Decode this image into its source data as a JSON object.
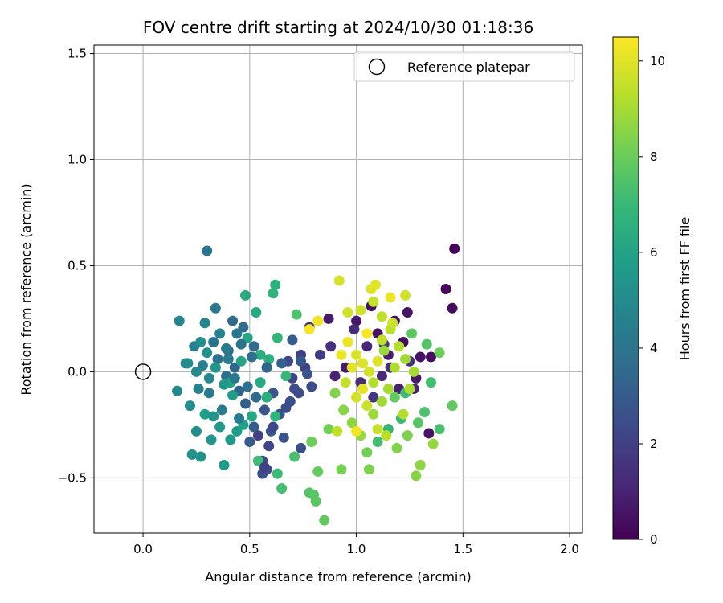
{
  "chart_data": {
    "type": "scatter",
    "title": "FOV centre drift starting at 2024/10/30 01:18:36",
    "xlabel": "Angular distance from reference (arcmin)",
    "ylabel": "Rotation from reference (arcmin)",
    "xlim": [
      -0.23,
      2.06
    ],
    "ylim": [
      -0.76,
      1.54
    ],
    "xticks": [
      0.0,
      0.5,
      1.0,
      1.5,
      2.0
    ],
    "xtick_labels": [
      "0.0",
      "0.5",
      "1.0",
      "1.5",
      "2.0"
    ],
    "yticks": [
      -0.5,
      0.0,
      0.5,
      1.0,
      1.5
    ],
    "ytick_labels": [
      "−0.5",
      "0.0",
      "0.5",
      "1.0",
      "1.5"
    ],
    "grid": true,
    "legend": {
      "placement": "top-right",
      "label": "Reference platepar"
    },
    "reference_point": {
      "x": 0.0,
      "y": 0.0
    },
    "colorbar": {
      "label": "Hours from first FF file",
      "range": [
        0,
        10.5
      ],
      "ticks": [
        0,
        2,
        4,
        6,
        8,
        10
      ],
      "tick_labels": [
        "0",
        "2",
        "4",
        "6",
        "8",
        "10"
      ],
      "colormap": "viridis"
    },
    "colormap_stops": [
      "#440154",
      "#482878",
      "#3e4989",
      "#31688e",
      "#26828e",
      "#1f9e89",
      "#35b779",
      "#6ece58",
      "#b5de2b",
      "#fde725"
    ],
    "points": [
      {
        "x": 1.46,
        "y": 0.58,
        "c": 0.1
      },
      {
        "x": 1.42,
        "y": 0.39,
        "c": 0.2
      },
      {
        "x": 1.45,
        "y": 0.3,
        "c": 0.3
      },
      {
        "x": 1.07,
        "y": 0.31,
        "c": 0.4
      },
      {
        "x": 1.18,
        "y": 0.24,
        "c": 0.5
      },
      {
        "x": 1.24,
        "y": 0.28,
        "c": 0.6
      },
      {
        "x": 1.3,
        "y": 0.07,
        "c": 0.5
      },
      {
        "x": 1.35,
        "y": 0.07,
        "c": 0.4
      },
      {
        "x": 1.34,
        "y": -0.29,
        "c": 0.6
      },
      {
        "x": 1.28,
        "y": -0.03,
        "c": 0.7
      },
      {
        "x": 1.22,
        "y": 0.14,
        "c": 0.3
      },
      {
        "x": 1.1,
        "y": 0.18,
        "c": 0.5
      },
      {
        "x": 1.0,
        "y": 0.24,
        "c": 0.6
      },
      {
        "x": 0.87,
        "y": 0.25,
        "c": 0.8
      },
      {
        "x": 1.15,
        "y": 0.08,
        "c": 0.9
      },
      {
        "x": 1.2,
        "y": -0.08,
        "c": 0.9
      },
      {
        "x": 1.27,
        "y": -0.08,
        "c": 1.0
      },
      {
        "x": 0.95,
        "y": 0.02,
        "c": 0.8
      },
      {
        "x": 1.05,
        "y": 0.12,
        "c": 1.1
      },
      {
        "x": 1.12,
        "y": -0.02,
        "c": 1.2
      },
      {
        "x": 1.02,
        "y": -0.05,
        "c": 1.3
      },
      {
        "x": 0.9,
        "y": -0.02,
        "c": 1.0
      },
      {
        "x": 1.16,
        "y": 0.02,
        "c": 1.4
      },
      {
        "x": 1.25,
        "y": 0.05,
        "c": 1.5
      },
      {
        "x": 0.88,
        "y": 0.12,
        "c": 1.5
      },
      {
        "x": 0.99,
        "y": 0.2,
        "c": 1.3
      },
      {
        "x": 1.08,
        "y": -0.12,
        "c": 1.6
      },
      {
        "x": 1.13,
        "y": 0.13,
        "c": 1.7
      },
      {
        "x": 0.78,
        "y": 0.21,
        "c": 1.8
      },
      {
        "x": 0.83,
        "y": 0.08,
        "c": 1.9
      },
      {
        "x": 0.74,
        "y": 0.08,
        "c": 2.0
      },
      {
        "x": 0.76,
        "y": 0.02,
        "c": 2.1
      },
      {
        "x": 0.7,
        "y": -0.03,
        "c": 2.2
      },
      {
        "x": 0.68,
        "y": 0.05,
        "c": 2.3
      },
      {
        "x": 0.73,
        "y": -0.1,
        "c": 2.4
      },
      {
        "x": 0.79,
        "y": -0.07,
        "c": 2.5
      },
      {
        "x": 0.69,
        "y": -0.14,
        "c": 2.6
      },
      {
        "x": 0.64,
        "y": -0.2,
        "c": 2.7
      },
      {
        "x": 0.57,
        "y": -0.18,
        "c": 2.8
      },
      {
        "x": 0.61,
        "y": -0.1,
        "c": 2.9
      },
      {
        "x": 0.56,
        "y": -0.42,
        "c": 2.5
      },
      {
        "x": 0.58,
        "y": -0.46,
        "c": 2.4
      },
      {
        "x": 0.56,
        "y": -0.48,
        "c": 2.6
      },
      {
        "x": 0.66,
        "y": -0.31,
        "c": 2.7
      },
      {
        "x": 0.74,
        "y": -0.36,
        "c": 2.6
      },
      {
        "x": 0.6,
        "y": -0.28,
        "c": 2.8
      },
      {
        "x": 0.5,
        "y": -0.33,
        "c": 3.0
      },
      {
        "x": 0.52,
        "y": -0.26,
        "c": 3.1
      },
      {
        "x": 0.48,
        "y": -0.15,
        "c": 3.2
      },
      {
        "x": 0.45,
        "y": -0.09,
        "c": 3.3
      },
      {
        "x": 0.43,
        "y": 0.02,
        "c": 3.4
      },
      {
        "x": 0.4,
        "y": 0.1,
        "c": 3.5
      },
      {
        "x": 0.42,
        "y": 0.24,
        "c": 3.6
      },
      {
        "x": 0.47,
        "y": 0.21,
        "c": 3.7
      },
      {
        "x": 0.39,
        "y": -0.02,
        "c": 3.8
      },
      {
        "x": 0.35,
        "y": 0.06,
        "c": 3.9
      },
      {
        "x": 0.33,
        "y": 0.14,
        "c": 4.0
      },
      {
        "x": 0.3,
        "y": 0.57,
        "c": 4.1
      },
      {
        "x": 0.34,
        "y": 0.3,
        "c": 4.2
      },
      {
        "x": 0.31,
        "y": -0.1,
        "c": 4.3
      },
      {
        "x": 0.37,
        "y": -0.18,
        "c": 4.4
      },
      {
        "x": 0.28,
        "y": 0.03,
        "c": 4.5
      },
      {
        "x": 0.24,
        "y": 0.12,
        "c": 4.6
      },
      {
        "x": 0.26,
        "y": -0.08,
        "c": 4.7
      },
      {
        "x": 0.17,
        "y": 0.24,
        "c": 4.8
      },
      {
        "x": 0.16,
        "y": -0.09,
        "c": 4.9
      },
      {
        "x": 0.2,
        "y": 0.04,
        "c": 5.0
      },
      {
        "x": 0.22,
        "y": -0.16,
        "c": 5.1
      },
      {
        "x": 0.25,
        "y": -0.28,
        "c": 5.2
      },
      {
        "x": 0.27,
        "y": -0.4,
        "c": 5.3
      },
      {
        "x": 0.23,
        "y": -0.39,
        "c": 5.4
      },
      {
        "x": 0.32,
        "y": -0.32,
        "c": 5.5
      },
      {
        "x": 0.36,
        "y": -0.26,
        "c": 5.6
      },
      {
        "x": 0.38,
        "y": -0.44,
        "c": 5.7
      },
      {
        "x": 0.44,
        "y": -0.28,
        "c": 5.8
      },
      {
        "x": 0.29,
        "y": -0.2,
        "c": 5.9
      },
      {
        "x": 0.41,
        "y": -0.05,
        "c": 6.0
      },
      {
        "x": 0.46,
        "y": 0.05,
        "c": 6.1
      },
      {
        "x": 0.49,
        "y": 0.16,
        "c": 6.2
      },
      {
        "x": 0.53,
        "y": 0.28,
        "c": 6.3
      },
      {
        "x": 0.48,
        "y": 0.36,
        "c": 6.4
      },
      {
        "x": 0.55,
        "y": 0.08,
        "c": 6.5
      },
      {
        "x": 0.59,
        "y": 0.06,
        "c": 6.6
      },
      {
        "x": 0.62,
        "y": 0.41,
        "c": 6.7
      },
      {
        "x": 0.61,
        "y": 0.37,
        "c": 6.8
      },
      {
        "x": 0.63,
        "y": 0.16,
        "c": 6.9
      },
      {
        "x": 0.67,
        "y": -0.02,
        "c": 7.0
      },
      {
        "x": 0.63,
        "y": -0.48,
        "c": 7.1
      },
      {
        "x": 0.54,
        "y": -0.42,
        "c": 7.2
      },
      {
        "x": 0.65,
        "y": -0.55,
        "c": 7.3
      },
      {
        "x": 0.71,
        "y": -0.4,
        "c": 7.4
      },
      {
        "x": 0.72,
        "y": 0.27,
        "c": 7.5
      },
      {
        "x": 0.78,
        "y": -0.57,
        "c": 7.6
      },
      {
        "x": 0.8,
        "y": -0.58,
        "c": 7.7
      },
      {
        "x": 0.81,
        "y": -0.61,
        "c": 7.8
      },
      {
        "x": 0.85,
        "y": -0.7,
        "c": 7.9
      },
      {
        "x": 0.82,
        "y": -0.47,
        "c": 8.0
      },
      {
        "x": 0.79,
        "y": -0.33,
        "c": 8.1
      },
      {
        "x": 0.87,
        "y": -0.27,
        "c": 8.2
      },
      {
        "x": 0.93,
        "y": -0.46,
        "c": 8.3
      },
      {
        "x": 1.06,
        "y": -0.46,
        "c": 8.4
      },
      {
        "x": 1.19,
        "y": -0.36,
        "c": 8.5
      },
      {
        "x": 1.28,
        "y": -0.49,
        "c": 8.6
      },
      {
        "x": 1.3,
        "y": -0.44,
        "c": 8.7
      },
      {
        "x": 1.36,
        "y": -0.34,
        "c": 8.8
      },
      {
        "x": 1.39,
        "y": -0.27,
        "c": 7.4
      },
      {
        "x": 1.45,
        "y": -0.16,
        "c": 7.9
      },
      {
        "x": 1.39,
        "y": 0.09,
        "c": 8.1
      },
      {
        "x": 1.33,
        "y": 0.13,
        "c": 7.6
      },
      {
        "x": 1.26,
        "y": 0.18,
        "c": 7.8
      },
      {
        "x": 1.23,
        "y": -0.1,
        "c": 7.2
      },
      {
        "x": 1.29,
        "y": -0.24,
        "c": 7.7
      },
      {
        "x": 1.32,
        "y": -0.19,
        "c": 7.5
      },
      {
        "x": 1.35,
        "y": -0.05,
        "c": 7.3
      },
      {
        "x": 1.21,
        "y": -0.22,
        "c": 7.1
      },
      {
        "x": 1.15,
        "y": -0.27,
        "c": 7.0
      },
      {
        "x": 1.1,
        "y": -0.33,
        "c": 7.3
      },
      {
        "x": 1.05,
        "y": -0.38,
        "c": 8.2
      },
      {
        "x": 1.18,
        "y": -0.12,
        "c": 7.9
      },
      {
        "x": 1.24,
        "y": -0.3,
        "c": 8.4
      },
      {
        "x": 0.9,
        "y": -0.1,
        "c": 8.5
      },
      {
        "x": 0.94,
        "y": -0.18,
        "c": 8.6
      },
      {
        "x": 0.98,
        "y": -0.24,
        "c": 8.7
      },
      {
        "x": 1.02,
        "y": -0.3,
        "c": 8.8
      },
      {
        "x": 1.08,
        "y": -0.2,
        "c": 8.9
      },
      {
        "x": 1.12,
        "y": -0.14,
        "c": 9.0
      },
      {
        "x": 1.15,
        "y": -0.08,
        "c": 9.1
      },
      {
        "x": 1.18,
        "y": 0.02,
        "c": 9.2
      },
      {
        "x": 1.2,
        "y": 0.12,
        "c": 9.3
      },
      {
        "x": 1.16,
        "y": 0.2,
        "c": 9.4
      },
      {
        "x": 1.12,
        "y": 0.26,
        "c": 9.5
      },
      {
        "x": 1.08,
        "y": 0.33,
        "c": 9.6
      },
      {
        "x": 1.02,
        "y": 0.29,
        "c": 9.7
      },
      {
        "x": 0.96,
        "y": 0.28,
        "c": 9.8
      },
      {
        "x": 0.92,
        "y": 0.43,
        "c": 9.9
      },
      {
        "x": 1.07,
        "y": 0.39,
        "c": 10.0
      },
      {
        "x": 1.09,
        "y": 0.41,
        "c": 10.1
      },
      {
        "x": 1.16,
        "y": 0.35,
        "c": 10.2
      },
      {
        "x": 0.82,
        "y": 0.24,
        "c": 10.3
      },
      {
        "x": 0.78,
        "y": 0.2,
        "c": 10.4
      },
      {
        "x": 0.93,
        "y": 0.08,
        "c": 10.2
      },
      {
        "x": 0.98,
        "y": 0.02,
        "c": 10.1
      },
      {
        "x": 1.03,
        "y": 0.04,
        "c": 10.0
      },
      {
        "x": 1.0,
        "y": -0.12,
        "c": 9.8
      },
      {
        "x": 1.05,
        "y": -0.16,
        "c": 9.7
      },
      {
        "x": 1.1,
        "y": -0.27,
        "c": 9.6
      },
      {
        "x": 0.91,
        "y": -0.28,
        "c": 9.5
      },
      {
        "x": 1.0,
        "y": -0.28,
        "c": 10.3
      },
      {
        "x": 1.14,
        "y": -0.3,
        "c": 9.4
      },
      {
        "x": 1.22,
        "y": -0.2,
        "c": 9.3
      },
      {
        "x": 1.25,
        "y": -0.08,
        "c": 9.2
      },
      {
        "x": 1.27,
        "y": 0.0,
        "c": 9.1
      },
      {
        "x": 1.23,
        "y": 0.06,
        "c": 9.0
      },
      {
        "x": 1.13,
        "y": 0.1,
        "c": 8.9
      },
      {
        "x": 1.05,
        "y": 0.18,
        "c": 10.4
      },
      {
        "x": 0.96,
        "y": 0.14,
        "c": 10.2
      },
      {
        "x": 1.0,
        "y": 0.08,
        "c": 9.9
      },
      {
        "x": 1.06,
        "y": 0.0,
        "c": 9.8
      },
      {
        "x": 1.1,
        "y": 0.05,
        "c": 10.0
      },
      {
        "x": 0.95,
        "y": -0.05,
        "c": 9.6
      },
      {
        "x": 1.03,
        "y": -0.08,
        "c": 10.1
      },
      {
        "x": 1.08,
        "y": -0.05,
        "c": 9.3
      },
      {
        "x": 1.12,
        "y": 0.15,
        "c": 9.5
      },
      {
        "x": 1.17,
        "y": 0.23,
        "c": 9.7
      },
      {
        "x": 1.23,
        "y": 0.36,
        "c": 9.8
      },
      {
        "x": 0.62,
        "y": -0.21,
        "c": 6.8
      },
      {
        "x": 0.58,
        "y": -0.12,
        "c": 6.6
      },
      {
        "x": 0.55,
        "y": -0.05,
        "c": 6.3
      },
      {
        "x": 0.51,
        "y": -0.21,
        "c": 6.2
      },
      {
        "x": 0.47,
        "y": -0.25,
        "c": 6.0
      },
      {
        "x": 0.42,
        "y": -0.11,
        "c": 5.8
      },
      {
        "x": 0.38,
        "y": -0.06,
        "c": 5.6
      },
      {
        "x": 0.34,
        "y": 0.02,
        "c": 5.5
      },
      {
        "x": 0.3,
        "y": 0.09,
        "c": 5.3
      },
      {
        "x": 0.27,
        "y": 0.14,
        "c": 5.2
      },
      {
        "x": 0.25,
        "y": 0.0,
        "c": 5.0
      },
      {
        "x": 0.29,
        "y": 0.23,
        "c": 4.8
      },
      {
        "x": 0.36,
        "y": 0.18,
        "c": 4.6
      },
      {
        "x": 0.39,
        "y": 0.11,
        "c": 4.4
      },
      {
        "x": 0.43,
        "y": -0.03,
        "c": 4.2
      },
      {
        "x": 0.46,
        "y": 0.13,
        "c": 4.0
      },
      {
        "x": 0.51,
        "y": 0.07,
        "c": 3.8
      },
      {
        "x": 0.53,
        "y": -0.12,
        "c": 3.6
      },
      {
        "x": 0.58,
        "y": 0.02,
        "c": 3.4
      },
      {
        "x": 0.65,
        "y": 0.04,
        "c": 3.2
      },
      {
        "x": 0.7,
        "y": 0.15,
        "c": 3.0
      },
      {
        "x": 0.74,
        "y": 0.05,
        "c": 2.9
      },
      {
        "x": 0.77,
        "y": -0.01,
        "c": 2.7
      },
      {
        "x": 0.71,
        "y": -0.08,
        "c": 2.5
      },
      {
        "x": 0.67,
        "y": -0.17,
        "c": 2.4
      },
      {
        "x": 0.61,
        "y": -0.26,
        "c": 2.3
      },
      {
        "x": 0.59,
        "y": -0.35,
        "c": 2.2
      },
      {
        "x": 0.57,
        "y": -0.45,
        "c": 2.1
      },
      {
        "x": 0.54,
        "y": -0.3,
        "c": 2.0
      },
      {
        "x": 0.45,
        "y": -0.22,
        "c": 4.3
      },
      {
        "x": 0.41,
        "y": -0.32,
        "c": 5.7
      },
      {
        "x": 0.33,
        "y": -0.21,
        "c": 5.4
      },
      {
        "x": 0.31,
        "y": -0.03,
        "c": 4.9
      },
      {
        "x": 0.21,
        "y": 0.04,
        "c": 5.1
      },
      {
        "x": 0.4,
        "y": 0.06,
        "c": 4.5
      },
      {
        "x": 0.44,
        "y": 0.18,
        "c": 4.1
      },
      {
        "x": 0.49,
        "y": -0.07,
        "c": 3.9
      },
      {
        "x": 0.52,
        "y": 0.12,
        "c": 3.7
      }
    ]
  }
}
